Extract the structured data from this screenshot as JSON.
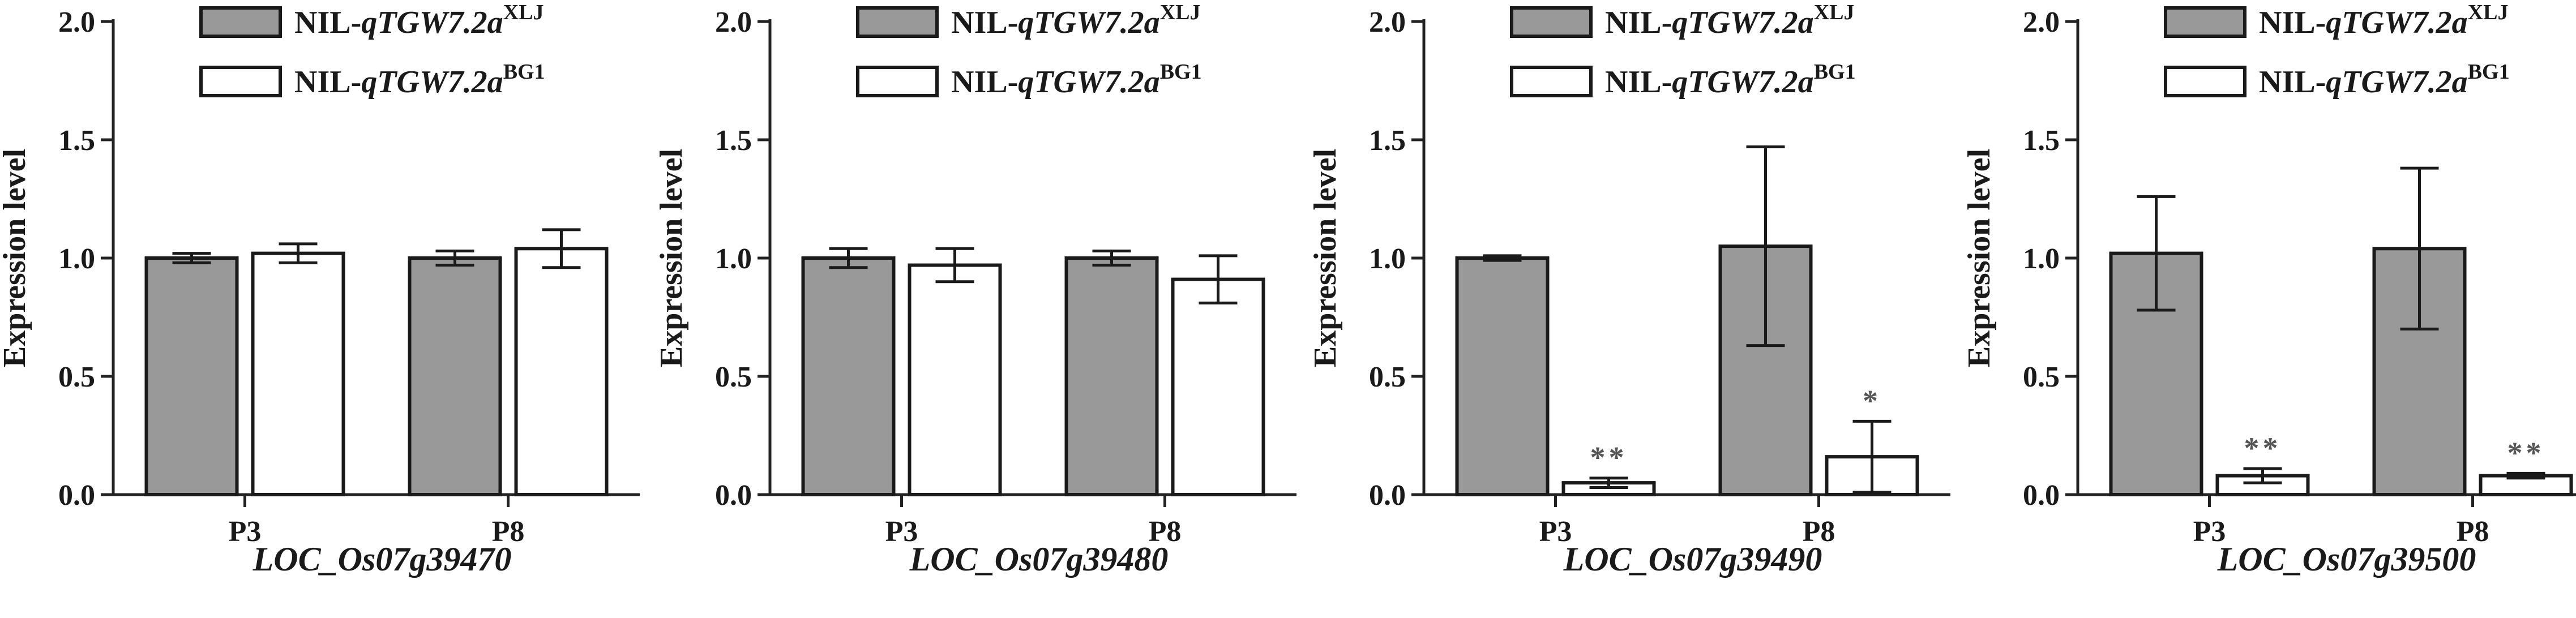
{
  "chart_data": [
    {
      "type": "bar",
      "ylabel": "Expression level",
      "ylim": [
        0,
        2.0
      ],
      "yticks": [
        "0.0",
        "0.5",
        "1.0",
        "1.5",
        "2.0"
      ],
      "categories": [
        "P3",
        "P8"
      ],
      "xlabel": "LOC_Os07g39470",
      "legend": [
        {
          "prefix": "NIL-",
          "name": "qTGW7.2a",
          "sup": "XLJ"
        },
        {
          "prefix": "NIL-",
          "name": "qTGW7.2a",
          "sup": "BG1"
        }
      ],
      "series": [
        {
          "values": [
            1.0,
            1.0
          ],
          "errors": [
            0.02,
            0.03
          ],
          "color": "#999999",
          "sig": [
            "",
            ""
          ]
        },
        {
          "values": [
            1.02,
            1.04
          ],
          "errors": [
            0.04,
            0.08
          ],
          "color": "#ffffff",
          "sig": [
            "",
            ""
          ]
        }
      ]
    },
    {
      "type": "bar",
      "ylabel": "Expression level",
      "ylim": [
        0,
        2.0
      ],
      "yticks": [
        "0.0",
        "0.5",
        "1.0",
        "1.5",
        "2.0"
      ],
      "categories": [
        "P3",
        "P8"
      ],
      "xlabel": "LOC_Os07g39480",
      "legend": [
        {
          "prefix": "NIL-",
          "name": "qTGW7.2a",
          "sup": "XLJ"
        },
        {
          "prefix": "NIL-",
          "name": "qTGW7.2a",
          "sup": "BG1"
        }
      ],
      "series": [
        {
          "values": [
            1.0,
            1.0
          ],
          "errors": [
            0.04,
            0.03
          ],
          "color": "#999999",
          "sig": [
            "",
            ""
          ]
        },
        {
          "values": [
            0.97,
            0.91
          ],
          "errors": [
            0.07,
            0.1
          ],
          "color": "#ffffff",
          "sig": [
            "",
            ""
          ]
        }
      ]
    },
    {
      "type": "bar",
      "ylabel": "Expression level",
      "ylim": [
        0,
        2.0
      ],
      "yticks": [
        "0.0",
        "0.5",
        "1.0",
        "1.5",
        "2.0"
      ],
      "categories": [
        "P3",
        "P8"
      ],
      "xlabel": "LOC_Os07g39490",
      "legend": [
        {
          "prefix": "NIL-",
          "name": "qTGW7.2a",
          "sup": "XLJ"
        },
        {
          "prefix": "NIL-",
          "name": "qTGW7.2a",
          "sup": "BG1"
        }
      ],
      "series": [
        {
          "values": [
            1.0,
            1.05
          ],
          "errors": [
            0.01,
            0.42
          ],
          "color": "#999999",
          "sig": [
            "",
            ""
          ]
        },
        {
          "values": [
            0.05,
            0.16
          ],
          "errors": [
            0.02,
            0.15
          ],
          "color": "#ffffff",
          "sig": [
            "**",
            "*"
          ]
        }
      ]
    },
    {
      "type": "bar",
      "ylabel": "Expression level",
      "ylim": [
        0,
        2.0
      ],
      "yticks": [
        "0.0",
        "0.5",
        "1.0",
        "1.5",
        "2.0"
      ],
      "categories": [
        "P3",
        "P8"
      ],
      "xlabel": "LOC_Os07g39500",
      "legend": [
        {
          "prefix": "NIL-",
          "name": "qTGW7.2a",
          "sup": "XLJ"
        },
        {
          "prefix": "NIL-",
          "name": "qTGW7.2a",
          "sup": "BG1"
        }
      ],
      "series": [
        {
          "values": [
            1.02,
            1.04
          ],
          "errors": [
            0.24,
            0.34
          ],
          "color": "#999999",
          "sig": [
            "",
            ""
          ]
        },
        {
          "values": [
            0.08,
            0.08
          ],
          "errors": [
            0.03,
            0.01
          ],
          "color": "#ffffff",
          "sig": [
            "**",
            "**"
          ]
        }
      ]
    }
  ]
}
